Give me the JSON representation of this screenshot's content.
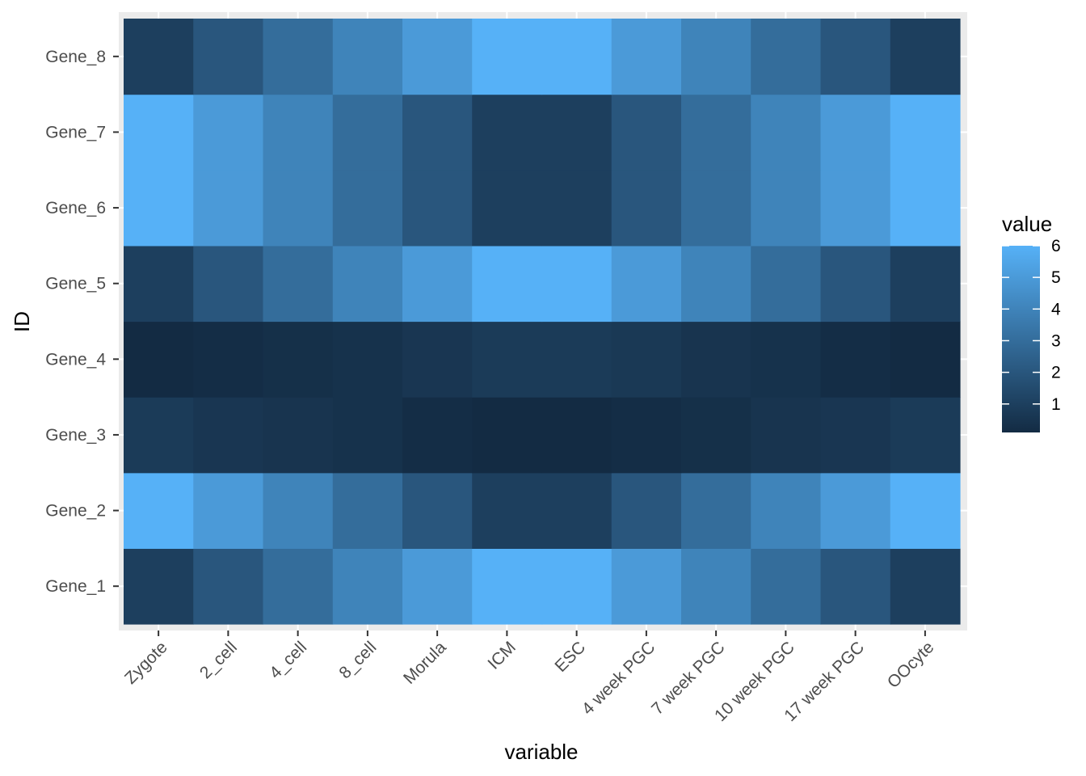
{
  "chart_data": {
    "type": "heatmap",
    "title": "",
    "xlabel": "variable",
    "ylabel": "ID",
    "x_categories": [
      "Zygote",
      "2_cell",
      "4_cell",
      "8_cell",
      "Morula",
      "ICM",
      "ESC",
      "4 week PGC",
      "7 week PGC",
      "10 week PGC",
      "17 week PGC",
      "OOcyte"
    ],
    "y_categories": [
      "Gene_1",
      "Gene_2",
      "Gene_3",
      "Gene_4",
      "Gene_5",
      "Gene_6",
      "Gene_7",
      "Gene_8"
    ],
    "values": [
      [
        1.0,
        2.0,
        3.0,
        4.0,
        5.0,
        6.0,
        6.0,
        5.0,
        4.0,
        3.0,
        2.0,
        1.0
      ],
      [
        6.0,
        5.0,
        4.0,
        3.0,
        2.0,
        1.0,
        1.0,
        2.0,
        3.0,
        4.0,
        5.0,
        6.0
      ],
      [
        0.8,
        0.6,
        0.5,
        0.4,
        0.2,
        0.1,
        0.1,
        0.2,
        0.3,
        0.5,
        0.6,
        0.8
      ],
      [
        0.1,
        0.2,
        0.3,
        0.4,
        0.6,
        0.8,
        0.8,
        0.7,
        0.5,
        0.4,
        0.2,
        0.1
      ],
      [
        1.0,
        2.0,
        3.0,
        4.0,
        5.0,
        6.0,
        6.0,
        5.0,
        4.0,
        3.0,
        2.0,
        1.0
      ],
      [
        6.0,
        5.0,
        4.0,
        3.0,
        2.0,
        1.0,
        1.0,
        2.0,
        3.0,
        4.0,
        5.0,
        6.0
      ],
      [
        6.0,
        5.0,
        4.0,
        3.0,
        2.0,
        1.0,
        1.0,
        2.0,
        3.0,
        4.0,
        5.0,
        6.0
      ],
      [
        1.0,
        2.0,
        3.0,
        4.0,
        5.0,
        6.0,
        6.0,
        5.0,
        4.0,
        3.0,
        2.0,
        1.0
      ]
    ],
    "legend": {
      "title": "value",
      "ticks": [
        "1",
        "2",
        "3",
        "4",
        "5",
        "6"
      ],
      "position": "right"
    },
    "color_scale": {
      "low": "#132B43",
      "high": "#56B1F7",
      "range": [
        0.1,
        6.0
      ]
    },
    "panel_background": "#EBEBEB",
    "grid": true
  }
}
